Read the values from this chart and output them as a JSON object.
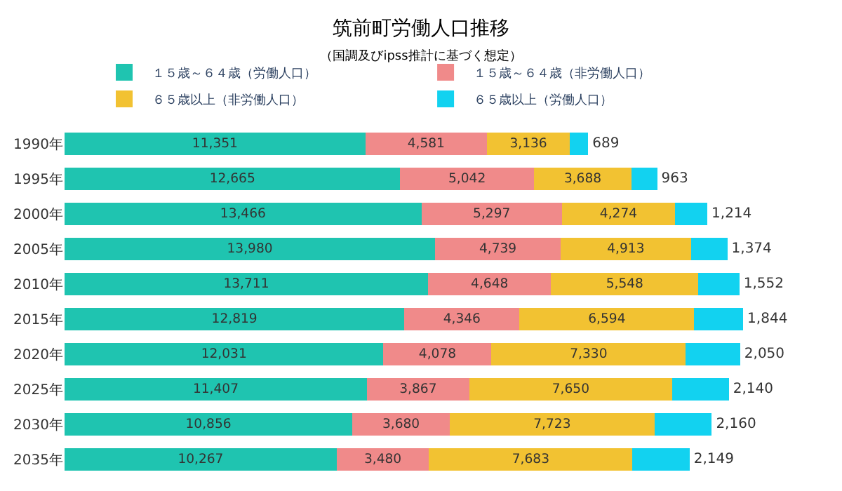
{
  "chart_data": {
    "type": "bar",
    "orientation": "horizontal",
    "stacked": true,
    "title": "筑前町労働人口推移",
    "subtitle": "（国調及びipss推計に基づく想定）",
    "categories": [
      "1990年",
      "1995年",
      "2000年",
      "2005年",
      "2010年",
      "2015年",
      "2020年",
      "2025年",
      "2030年",
      "2035年"
    ],
    "series": [
      {
        "name": "１５歳～６４歳（労働人口）",
        "color": "#1fc4b0",
        "values": [
          11351,
          12665,
          13466,
          13980,
          13711,
          12819,
          12031,
          11407,
          10856,
          10267
        ],
        "value_labels": [
          "11,351",
          "12,665",
          "13,466",
          "13,980",
          "13,711",
          "12,819",
          "12,031",
          "11,407",
          "10,856",
          "10,267"
        ]
      },
      {
        "name": "１５歳～６４歳（非労働人口）",
        "color": "#f08a8a",
        "values": [
          4581,
          5042,
          5297,
          4739,
          4648,
          4346,
          4078,
          3867,
          3680,
          3480
        ],
        "value_labels": [
          "4,581",
          "5,042",
          "5,297",
          "4,739",
          "4,648",
          "4,346",
          "4,078",
          "3,867",
          "3,680",
          "3,480"
        ]
      },
      {
        "name": "６５歳以上（非労働人口）",
        "color": "#f2c232",
        "values": [
          3136,
          3688,
          4274,
          4913,
          5548,
          6594,
          7330,
          7650,
          7723,
          7683
        ],
        "value_labels": [
          "3,136",
          "3,688",
          "4,274",
          "4,913",
          "5,548",
          "6,594",
          "7,330",
          "7,650",
          "7,723",
          "7,683"
        ]
      },
      {
        "name": "６５歳以上（労働人口）",
        "color": "#12d2f0",
        "values": [
          689,
          963,
          1214,
          1374,
          1552,
          1844,
          2050,
          2140,
          2160,
          2149
        ],
        "value_labels": [
          "689",
          "963",
          "1,214",
          "1,374",
          "1,552",
          "1,844",
          "2,050",
          "2,140",
          "2,160",
          "2,149"
        ]
      }
    ],
    "legend": "top"
  }
}
